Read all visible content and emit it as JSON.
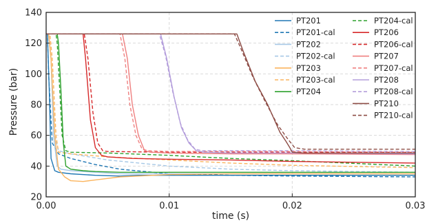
{
  "chart_data": {
    "type": "line",
    "xlabel": "time (s)",
    "ylabel": "Pressure (bar)",
    "xlim": [
      0.0,
      0.03
    ],
    "ylim": [
      20,
      140
    ],
    "xticks": [
      "0.00",
      "0.01",
      "0.02",
      "0.03"
    ],
    "yticks": [
      "20",
      "40",
      "60",
      "80",
      "100",
      "120",
      "140"
    ],
    "grid": true,
    "legend_position": "top-right",
    "series": [
      {
        "name": "PT201",
        "style": "solid",
        "color": "#1f77b4",
        "x": [
          0.0,
          0.0001,
          0.00025,
          0.0004,
          0.0007,
          0.001,
          0.002,
          0.004,
          0.006,
          0.0075,
          0.01,
          0.015,
          0.02,
          0.03
        ],
        "y": [
          126,
          126,
          90,
          45,
          37,
          36,
          35,
          34,
          33.5,
          34,
          34,
          34,
          34,
          34
        ]
      },
      {
        "name": "PT201-cal",
        "style": "dashed",
        "color": "#1f77b4",
        "x": [
          0.0,
          0.0001,
          0.0002,
          0.0005,
          0.001,
          0.002,
          0.004,
          0.006,
          0.01,
          0.015,
          0.02,
          0.03
        ],
        "y": [
          126,
          126,
          100,
          55,
          48,
          45,
          41,
          38,
          35,
          34,
          33.5,
          33
        ]
      },
      {
        "name": "PT202",
        "style": "solid",
        "color": "#a6c8e6",
        "x": [
          0.0,
          0.0002,
          0.0004,
          0.0006,
          0.0009,
          0.0012,
          0.002,
          0.004,
          0.006,
          0.01,
          0.015,
          0.02,
          0.03
        ],
        "y": [
          126,
          126,
          110,
          60,
          40,
          38,
          37,
          36,
          35,
          35,
          35,
          35,
          35
        ]
      },
      {
        "name": "PT202-cal",
        "style": "dashed",
        "color": "#a6c8e6",
        "x": [
          0.0,
          0.0002,
          0.0004,
          0.0007,
          0.001,
          0.002,
          0.005,
          0.01,
          0.015,
          0.02,
          0.03
        ],
        "y": [
          126,
          126,
          110,
          60,
          50,
          48,
          44,
          40,
          38,
          37,
          36
        ]
      },
      {
        "name": "PT203",
        "style": "solid",
        "color": "#fbb45d",
        "x": [
          0.0,
          0.0002,
          0.0004,
          0.0007,
          0.001,
          0.0015,
          0.002,
          0.003,
          0.004,
          0.006,
          0.01,
          0.015,
          0.02,
          0.03
        ],
        "y": [
          126,
          126,
          110,
          60,
          38,
          33,
          30.5,
          30,
          31,
          33,
          34.5,
          35,
          35,
          35
        ]
      },
      {
        "name": "PT203-cal",
        "style": "dashed",
        "color": "#fbb45d",
        "x": [
          0.0,
          0.0003,
          0.0005,
          0.0008,
          0.001,
          0.002,
          0.005,
          0.01,
          0.015,
          0.02,
          0.03
        ],
        "y": [
          126,
          126,
          110,
          60,
          49,
          48,
          46,
          44,
          42,
          40.5,
          39
        ]
      },
      {
        "name": "PT204",
        "style": "solid",
        "color": "#2ca02c",
        "x": [
          0.0,
          0.0009,
          0.001,
          0.0012,
          0.0014,
          0.0016,
          0.002,
          0.003,
          0.004,
          0.006,
          0.01,
          0.015,
          0.02,
          0.03
        ],
        "y": [
          126,
          126,
          120,
          90,
          55,
          40,
          38,
          37,
          36.5,
          36,
          36,
          36,
          36,
          36
        ]
      },
      {
        "name": "PT204-cal",
        "style": "dashed",
        "color": "#2ca02c",
        "x": [
          0.0,
          0.0008,
          0.0009,
          0.0011,
          0.0013,
          0.0016,
          0.002,
          0.005,
          0.01,
          0.015,
          0.02,
          0.03
        ],
        "y": [
          126,
          126,
          120,
          90,
          60,
          50,
          49,
          48.5,
          47,
          45,
          43.5,
          40
        ]
      },
      {
        "name": "PT206",
        "style": "solid",
        "color": "#d62728",
        "x": [
          0.0,
          0.003,
          0.0032,
          0.0036,
          0.004,
          0.0045,
          0.005,
          0.007,
          0.01,
          0.015,
          0.02,
          0.03
        ],
        "y": [
          126,
          126,
          110,
          70,
          52,
          47,
          46,
          45,
          44.5,
          44,
          43,
          42
        ]
      },
      {
        "name": "PT206-cal",
        "style": "dashed",
        "color": "#d62728",
        "x": [
          0.0,
          0.0031,
          0.0034,
          0.0038,
          0.0042,
          0.0046,
          0.005,
          0.01,
          0.02,
          0.03
        ],
        "y": [
          126,
          126,
          110,
          75,
          55,
          50,
          49.5,
          49,
          49,
          49
        ]
      },
      {
        "name": "PT207",
        "style": "solid",
        "color": "#ef7f7f",
        "x": [
          0.0,
          0.0062,
          0.0066,
          0.007,
          0.0075,
          0.008,
          0.0085,
          0.01,
          0.015,
          0.02,
          0.03
        ],
        "y": [
          126,
          126,
          110,
          80,
          60,
          50,
          49,
          48.5,
          48,
          48,
          47.5
        ]
      },
      {
        "name": "PT207-cal",
        "style": "dashed",
        "color": "#ef7f7f",
        "x": [
          0.0,
          0.006,
          0.0064,
          0.0068,
          0.0073,
          0.0078,
          0.0083,
          0.01,
          0.015,
          0.02,
          0.03
        ],
        "y": [
          126,
          126,
          110,
          80,
          60,
          51,
          50,
          49.5,
          49.5,
          49.5,
          49
        ]
      },
      {
        "name": "PT208",
        "style": "solid",
        "color": "#b39ddb",
        "x": [
          0.0,
          0.0093,
          0.0098,
          0.0104,
          0.011,
          0.0116,
          0.0122,
          0.0128,
          0.015,
          0.02,
          0.03
        ],
        "y": [
          126,
          126,
          110,
          85,
          65,
          55,
          50,
          49,
          48.5,
          48.5,
          48
        ]
      },
      {
        "name": "PT208-cal",
        "style": "dashed",
        "color": "#b39ddb",
        "x": [
          0.0,
          0.0092,
          0.0097,
          0.0103,
          0.0109,
          0.0115,
          0.0121,
          0.0127,
          0.015,
          0.02,
          0.03
        ],
        "y": [
          126,
          126,
          112,
          88,
          68,
          57,
          51,
          50,
          50,
          50,
          49.5
        ]
      },
      {
        "name": "PT210",
        "style": "solid",
        "color": "#8c4b44",
        "x": [
          0.0,
          0.0155,
          0.016,
          0.017,
          0.018,
          0.019,
          0.0195,
          0.0198,
          0.02,
          0.021,
          0.022,
          0.025,
          0.03
        ],
        "y": [
          126,
          126,
          115,
          95,
          80,
          62,
          56,
          52,
          49,
          48.5,
          48.5,
          48.5,
          48.5
        ]
      },
      {
        "name": "PT210-cal",
        "style": "dashed",
        "color": "#8c4b44",
        "x": [
          0.0,
          0.0153,
          0.0158,
          0.0168,
          0.0178,
          0.0188,
          0.0196,
          0.0202,
          0.021,
          0.025,
          0.03
        ],
        "y": [
          126,
          126,
          117,
          98,
          82,
          67,
          58,
          52,
          51,
          51,
          51
        ]
      }
    ]
  }
}
